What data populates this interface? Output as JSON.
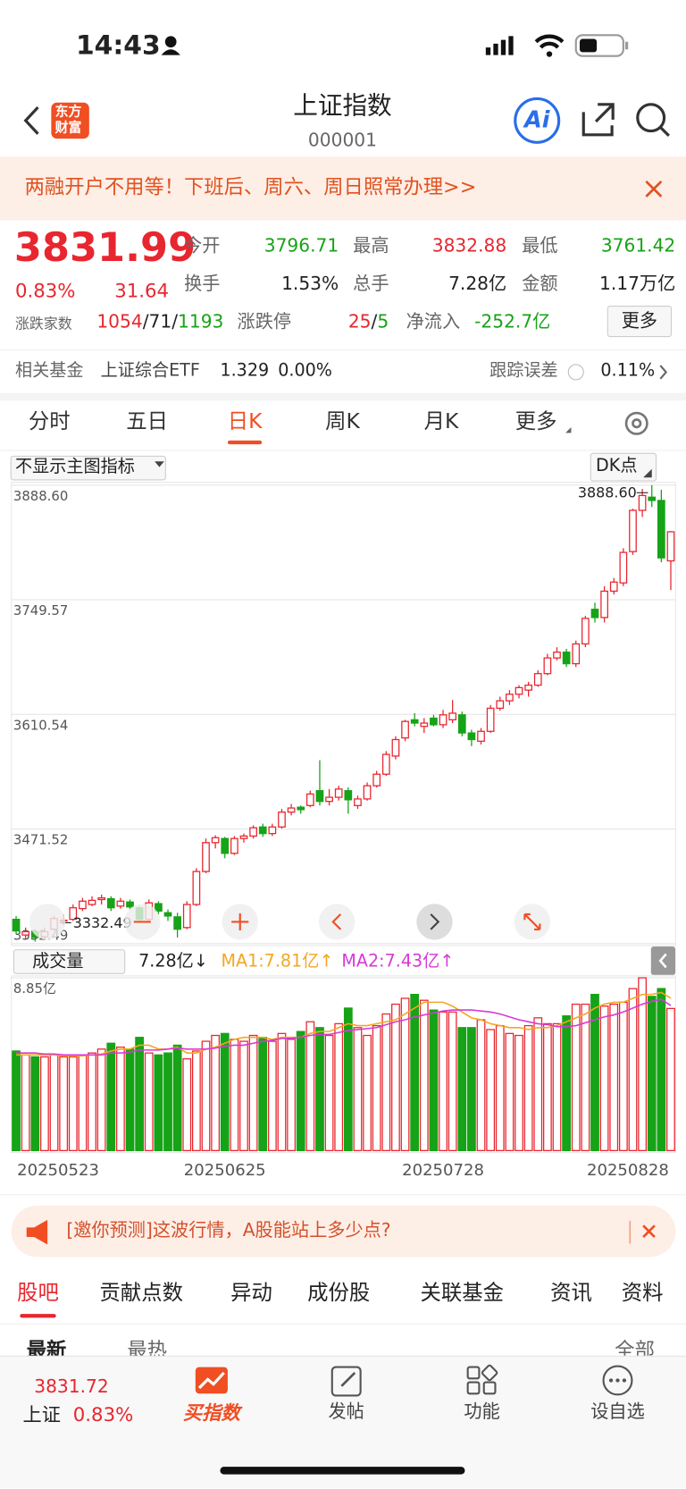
{
  "status": {
    "time": "14:43"
  },
  "header": {
    "logo": [
      "东方",
      "财富"
    ],
    "title": "上证指数",
    "code": "000001",
    "ai": "Ai"
  },
  "banner": {
    "text": "两融开户不用等！下班后、周六、周日照常办理>>"
  },
  "quote": {
    "price": "3831.99",
    "change_pct": "0.83%",
    "change": "31.64",
    "fields": [
      {
        "label": "今开",
        "value": "3796.71"
      },
      {
        "label": "最高",
        "value": "3832.88"
      },
      {
        "label": "最低",
        "value": "3761.42"
      },
      {
        "label": "换手",
        "value": "1.53%"
      },
      {
        "label": "总手",
        "value": "7.28亿"
      },
      {
        "label": "金额",
        "value": "1.17万亿"
      }
    ],
    "breadth": {
      "label": "涨跌家数",
      "up": "1054",
      "flat": "71",
      "down": "1193",
      "separator": "/"
    },
    "limit": {
      "label": "涨跌停",
      "up": "25",
      "down": "5"
    },
    "netflow": {
      "label": "净流入",
      "value": "-252.7亿"
    },
    "more": "更多"
  },
  "fund": {
    "label": "相关基金",
    "name": "上证综合ETF",
    "price": "1.329",
    "change": "0.00%",
    "tracking_label": "跟踪误差",
    "tracking_value": "0.11%"
  },
  "tabs": [
    "分时",
    "五日",
    "日K",
    "周K",
    "月K",
    "更多"
  ],
  "indicator": {
    "main": "不显示主图指标",
    "dk": "DK点"
  },
  "chart_data": {
    "type": "candlestick",
    "ylim": [
      3332.49,
      3888.6
    ],
    "yticks": [
      {
        "value": 3888.6,
        "label": "3888.60"
      },
      {
        "value": 3749.57,
        "label": "3749.57"
      },
      {
        "value": 3610.54,
        "label": "3610.54"
      },
      {
        "value": 3471.52,
        "label": "3471.52"
      },
      {
        "value": 3332.49,
        "label": "3332.49"
      }
    ],
    "max_label": "3888.60",
    "min_label": "3332.49",
    "up_color": "#e8262f",
    "down_color": "#17a317",
    "categories": [
      "20250523",
      null,
      null,
      null,
      null,
      null,
      null,
      null,
      null,
      null,
      null,
      null,
      null,
      null,
      null,
      null,
      null,
      null,
      null,
      null,
      null,
      null,
      "20250625",
      null,
      null,
      null,
      null,
      null,
      null,
      null,
      null,
      null,
      null,
      null,
      null,
      null,
      null,
      null,
      null,
      null,
      null,
      null,
      null,
      null,
      null,
      "20250728",
      null,
      null,
      null,
      null,
      null,
      null,
      null,
      null,
      null,
      null,
      null,
      null,
      null,
      null,
      null,
      null,
      null,
      null,
      null,
      null,
      null,
      null,
      "20250828",
      null
    ],
    "ohlc": [
      [
        3362,
        3366,
        3344,
        3348
      ],
      [
        3343,
        3352,
        3338,
        3347
      ],
      [
        3347,
        3350,
        3335,
        3340
      ],
      [
        3341,
        3352,
        3338,
        3347
      ],
      [
        3350,
        3366,
        3348,
        3363
      ],
      [
        3360,
        3368,
        3355,
        3361
      ],
      [
        3362,
        3380,
        3360,
        3376
      ],
      [
        3375,
        3388,
        3372,
        3384
      ],
      [
        3380,
        3390,
        3378,
        3385
      ],
      [
        3386,
        3392,
        3380,
        3388
      ],
      [
        3387,
        3390,
        3372,
        3376
      ],
      [
        3378,
        3388,
        3375,
        3384
      ],
      [
        3383,
        3386,
        3374,
        3377
      ],
      [
        3376,
        3378,
        3358,
        3362
      ],
      [
        3362,
        3386,
        3360,
        3382
      ],
      [
        3381,
        3384,
        3368,
        3372
      ],
      [
        3370,
        3374,
        3360,
        3366
      ],
      [
        3365,
        3370,
        3340,
        3350
      ],
      [
        3352,
        3384,
        3350,
        3380
      ],
      [
        3380,
        3424,
        3378,
        3420
      ],
      [
        3420,
        3460,
        3418,
        3455
      ],
      [
        3455,
        3464,
        3448,
        3461
      ],
      [
        3460,
        3462,
        3436,
        3442
      ],
      [
        3442,
        3463,
        3440,
        3460
      ],
      [
        3460,
        3466,
        3455,
        3463
      ],
      [
        3463,
        3476,
        3460,
        3473
      ],
      [
        3474,
        3478,
        3462,
        3466
      ],
      [
        3466,
        3478,
        3463,
        3474
      ],
      [
        3474,
        3496,
        3472,
        3492
      ],
      [
        3492,
        3502,
        3488,
        3497
      ],
      [
        3498,
        3500,
        3490,
        3495
      ],
      [
        3500,
        3518,
        3498,
        3514
      ],
      [
        3518,
        3555,
        3500,
        3505
      ],
      [
        3505,
        3520,
        3500,
        3510
      ],
      [
        3510,
        3524,
        3506,
        3520
      ],
      [
        3518,
        3522,
        3490,
        3507
      ],
      [
        3500,
        3512,
        3496,
        3508
      ],
      [
        3508,
        3528,
        3506,
        3524
      ],
      [
        3524,
        3542,
        3522,
        3538
      ],
      [
        3538,
        3566,
        3536,
        3562
      ],
      [
        3560,
        3584,
        3556,
        3580
      ],
      [
        3582,
        3604,
        3578,
        3602
      ],
      [
        3604,
        3612,
        3596,
        3600
      ],
      [
        3596,
        3606,
        3588,
        3600
      ],
      [
        3606,
        3610,
        3596,
        3598
      ],
      [
        3598,
        3616,
        3594,
        3610
      ],
      [
        3604,
        3628,
        3600,
        3612
      ],
      [
        3610,
        3614,
        3584,
        3588
      ],
      [
        3588,
        3592,
        3572,
        3580
      ],
      [
        3578,
        3594,
        3574,
        3590
      ],
      [
        3590,
        3622,
        3588,
        3618
      ],
      [
        3618,
        3632,
        3615,
        3627
      ],
      [
        3627,
        3640,
        3622,
        3635
      ],
      [
        3635,
        3646,
        3630,
        3643
      ],
      [
        3640,
        3650,
        3632,
        3646
      ],
      [
        3646,
        3664,
        3644,
        3660
      ],
      [
        3660,
        3684,
        3658,
        3679
      ],
      [
        3679,
        3692,
        3676,
        3686
      ],
      [
        3686,
        3690,
        3668,
        3672
      ],
      [
        3672,
        3700,
        3668,
        3696
      ],
      [
        3696,
        3730,
        3692,
        3727
      ],
      [
        3738,
        3746,
        3722,
        3728
      ],
      [
        3728,
        3766,
        3722,
        3760
      ],
      [
        3760,
        3776,
        3756,
        3771
      ],
      [
        3770,
        3812,
        3766,
        3807
      ],
      [
        3808,
        3860,
        3804,
        3858
      ],
      [
        3858,
        3884,
        3850,
        3876
      ],
      [
        3874,
        3888.6,
        3862,
        3870
      ],
      [
        3870,
        3883,
        3795,
        3800.35
      ],
      [
        3796.71,
        3832.88,
        3761.42,
        3831.99
      ]
    ],
    "volume": {
      "label": "成交量",
      "current": "7.28亿↓",
      "ma1_label": "MA1:7.81亿↑",
      "ma2_label": "MA2:7.43亿↑",
      "ma1_color": "#f5a623",
      "ma2_color": "#d63bd6",
      "ylim": [
        0,
        8.85
      ],
      "yticks": [
        {
          "value": 8.85,
          "label": "8.85亿"
        }
      ],
      "values": [
        5.1,
        4.9,
        4.8,
        4.8,
        4.9,
        4.8,
        4.8,
        4.9,
        5.0,
        5.2,
        5.5,
        5.3,
        5.2,
        5.8,
        5.0,
        4.9,
        5.0,
        5.4,
        4.7,
        5.1,
        5.6,
        5.9,
        6.0,
        5.7,
        5.6,
        5.9,
        5.8,
        5.6,
        6.0,
        5.7,
        6.1,
        6.6,
        6.3,
        5.9,
        6.5,
        7.3,
        6.3,
        5.9,
        6.4,
        7.0,
        7.5,
        7.8,
        8.0,
        7.7,
        7.2,
        7.1,
        7.1,
        6.3,
        6.3,
        6.7,
        6.2,
        6.4,
        6.0,
        5.9,
        6.4,
        6.8,
        6.5,
        6.5,
        6.9,
        7.5,
        7.5,
        8.0,
        7.4,
        7.5,
        7.6,
        8.3,
        8.85,
        7.9,
        8.3,
        7.28
      ],
      "ma1": [
        4.9,
        4.9,
        4.9,
        4.9,
        4.9,
        4.85,
        4.85,
        4.85,
        4.9,
        4.95,
        5.1,
        5.2,
        5.2,
        5.4,
        5.4,
        5.2,
        5.2,
        5.3,
        5.0,
        5.0,
        5.2,
        5.3,
        5.5,
        5.7,
        5.8,
        5.8,
        5.8,
        5.7,
        5.8,
        5.8,
        5.8,
        6.0,
        6.1,
        6.1,
        6.3,
        6.5,
        6.4,
        6.4,
        6.5,
        6.6,
        6.7,
        7.0,
        7.3,
        7.6,
        7.6,
        7.6,
        7.4,
        7.1,
        6.8,
        6.7,
        6.5,
        6.4,
        6.3,
        6.3,
        6.2,
        6.3,
        6.3,
        6.4,
        6.6,
        6.8,
        7.0,
        7.3,
        7.5,
        7.6,
        7.6,
        7.8,
        8.0,
        8.0,
        8.1,
        7.81
      ],
      "ma2": [
        5.0,
        5.0,
        5.0,
        4.95,
        4.95,
        4.9,
        4.9,
        4.9,
        4.9,
        4.9,
        5.0,
        5.0,
        5.05,
        5.15,
        5.15,
        5.15,
        5.2,
        5.25,
        5.2,
        5.2,
        5.2,
        5.25,
        5.35,
        5.4,
        5.4,
        5.5,
        5.6,
        5.65,
        5.75,
        5.75,
        5.8,
        5.9,
        5.95,
        5.95,
        6.05,
        6.15,
        6.2,
        6.25,
        6.3,
        6.45,
        6.6,
        6.7,
        6.85,
        6.95,
        7.05,
        7.15,
        7.2,
        7.2,
        7.2,
        7.15,
        7.1,
        7.0,
        6.85,
        6.7,
        6.6,
        6.5,
        6.45,
        6.35,
        6.35,
        6.4,
        6.55,
        6.7,
        6.85,
        6.95,
        7.1,
        7.3,
        7.5,
        7.65,
        7.75,
        7.43
      ]
    }
  },
  "ad": {
    "text": "[邀你预测]这波行情，A股能站上多少点?"
  },
  "bottom_tabs": [
    "股吧",
    "贡献点数",
    "异动",
    "成份股",
    "关联基金",
    "资讯",
    "资料"
  ],
  "sub_tabs": {
    "latest": "最新",
    "hot": "最热",
    "all": "全部"
  },
  "bottom_bar": {
    "price": "3831.72",
    "name": "上证",
    "pct": "0.83%",
    "items": [
      "买指数",
      "发帖",
      "功能",
      "设自选"
    ]
  }
}
